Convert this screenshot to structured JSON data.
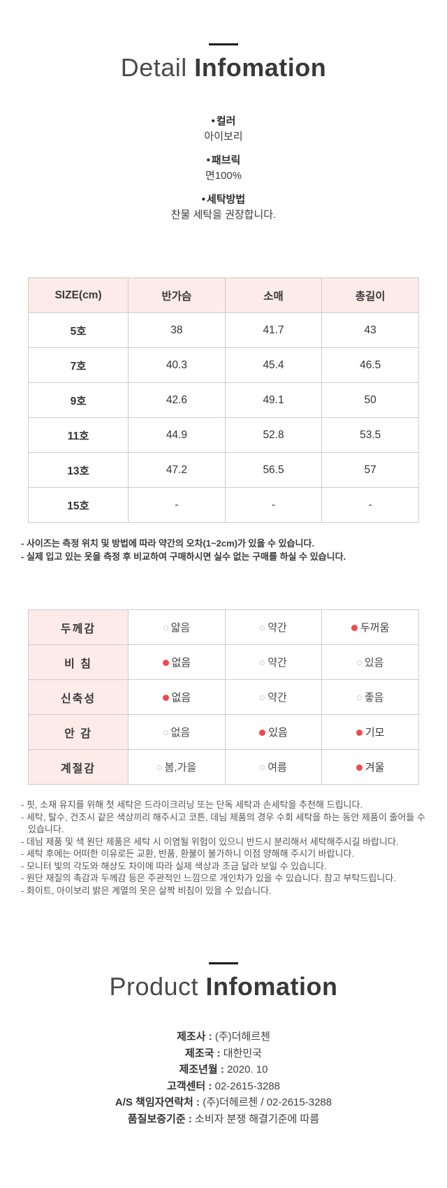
{
  "glyphs": {
    "bullet": "•"
  },
  "colors": {
    "accent_red": "#ef4b4b",
    "table_header_bg": "#fcebe9",
    "border": "#cccccc",
    "title_dark": "#383838"
  },
  "detail_header": {
    "title_light": "Detail",
    "title_bold": "Infomation"
  },
  "specs": [
    {
      "label": "컬러",
      "value": "아이보리"
    },
    {
      "label": "패브릭",
      "value": "면100%"
    },
    {
      "label": "세탁방법",
      "value": "찬물 세탁을 권장합니다."
    }
  ],
  "size_table": {
    "headers": [
      "SIZE(cm)",
      "반가슴",
      "소매",
      "총길이"
    ],
    "rows": [
      {
        "size": "5호",
        "values": [
          "38",
          "41.7",
          "43"
        ]
      },
      {
        "size": "7호",
        "values": [
          "40.3",
          "45.4",
          "46.5"
        ]
      },
      {
        "size": "9호",
        "values": [
          "42.6",
          "49.1",
          "50"
        ]
      },
      {
        "size": "11호",
        "values": [
          "44.9",
          "52.8",
          "53.5"
        ]
      },
      {
        "size": "13호",
        "values": [
          "47.2",
          "56.5",
          "57"
        ]
      },
      {
        "size": "15호",
        "values": [
          "-",
          "-",
          "-"
        ]
      }
    ]
  },
  "size_notes": [
    "- 사이즈는 측정 위치 및 방법에 따라 약간의 오차(1~2cm)가 있을 수 있습니다.",
    "- 실제 입고 있는 옷을 측정 후 비교하여 구매하시면 실수 없는 구매를 하실 수 있습니다."
  ],
  "feature_table": {
    "rows": [
      {
        "label": "두께감",
        "options": [
          {
            "text": "얇음",
            "state": "off"
          },
          {
            "text": "약간",
            "state": "off"
          },
          {
            "text": "두꺼움",
            "state": "on"
          }
        ]
      },
      {
        "label": "비 침",
        "options": [
          {
            "text": "없음",
            "state": "on"
          },
          {
            "text": "약간",
            "state": "off"
          },
          {
            "text": "있음",
            "state": "off"
          }
        ]
      },
      {
        "label": "신축성",
        "options": [
          {
            "text": "없음",
            "state": "on"
          },
          {
            "text": "약간",
            "state": "off"
          },
          {
            "text": "좋음",
            "state": "off"
          }
        ]
      },
      {
        "label": "안 감",
        "options": [
          {
            "text": "없음",
            "state": "off"
          },
          {
            "text": "있음",
            "state": "on"
          },
          {
            "text": "기모",
            "state": "on"
          }
        ]
      },
      {
        "label": "계절감",
        "options": [
          {
            "text": "봄,가을",
            "state": "off"
          },
          {
            "text": "여름",
            "state": "off"
          },
          {
            "text": "겨울",
            "state": "on"
          }
        ]
      }
    ]
  },
  "care_notes": [
    "- 핏, 소재 유지를 위해 첫 세탁은 드라이크리닝 또는 단독 세탁과 손세탁을 추천해 드립니다.",
    "- 세탁, 탈수, 건조시 같은 색상끼리 해주시고 코튼, 데님 제품의 경우 수회 세탁을 하는 동안 제품이 줄어들 수 있습니다.",
    "- 데님 제품 및 색 원단 제품은 세탁 시 이염될 위험이 있으니 반드시 분리해서 세탁해주시길 바랍니다.",
    "- 세탁 후에는 어떠한 이유로든 교환, 반품, 환불이 불가하니 이점 양해해 주시기 바랍니다.",
    "- 모니터 빛의 각도와 해상도 차이에 따라 실제 색상과 조금 달라 보일 수 있습니다.",
    "- 원단 재질의 촉감과 두께감 등은 주관적인 느낌으로 개인차가 있을 수 있습니다. 참고 부탁드립니다.",
    "- 화이트, 아이보리 밝은 계열의 옷은 살짝 비침이 있을 수 있습니다."
  ],
  "product_header": {
    "title_light": "Product",
    "title_bold": "Infomation"
  },
  "product_sep": " : ",
  "product_info": [
    {
      "label": "제조사",
      "value": "(주)더헤르첸"
    },
    {
      "label": "제조국",
      "value": "대한민국"
    },
    {
      "label": "제조년월",
      "value": "2020. 10"
    },
    {
      "label": "고객센터",
      "value": "02-2615-3288"
    },
    {
      "label": "A/S 책임자연락처",
      "value": "(주)더헤르첸 / 02-2615-3288"
    },
    {
      "label": "품질보증기준",
      "value": "소비자 분쟁 해결기준에 따름"
    }
  ]
}
